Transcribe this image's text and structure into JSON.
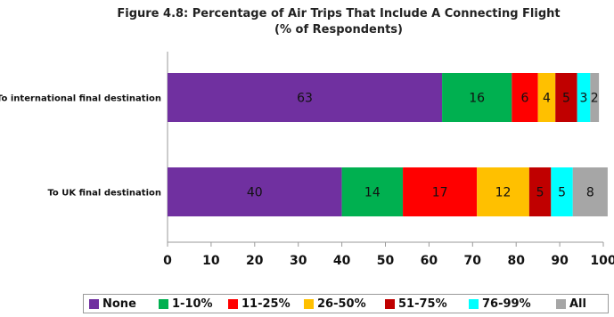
{
  "title_line1": "Figure 4.8: Percentage of Air Trips That Include A Connecting Flight",
  "title_line2": "(% of Respondents)",
  "chart_data": {
    "type": "bar",
    "orientation": "horizontal",
    "stacked": true,
    "categories": [
      "To international final destination",
      "To UK final destination"
    ],
    "series": [
      {
        "name": "None",
        "color": "#7030a0",
        "values": [
          63,
          40
        ]
      },
      {
        "name": "1-10%",
        "color": "#00b050",
        "values": [
          16,
          14
        ]
      },
      {
        "name": "11-25%",
        "color": "#ff0000",
        "values": [
          6,
          17
        ]
      },
      {
        "name": "26-50%",
        "color": "#ffc000",
        "values": [
          4,
          12
        ]
      },
      {
        "name": "51-75%",
        "color": "#c00000",
        "values": [
          5,
          5
        ]
      },
      {
        "name": "76-99%",
        "color": "#00ffff",
        "values": [
          3,
          5
        ]
      },
      {
        "name": "All",
        "color": "#a6a6a6",
        "values": [
          2,
          8
        ]
      }
    ],
    "xlim": [
      0,
      100
    ],
    "xticks": [
      0,
      10,
      20,
      30,
      40,
      50,
      60,
      70,
      80,
      90,
      100
    ],
    "grid": false,
    "legend_position": "bottom"
  }
}
